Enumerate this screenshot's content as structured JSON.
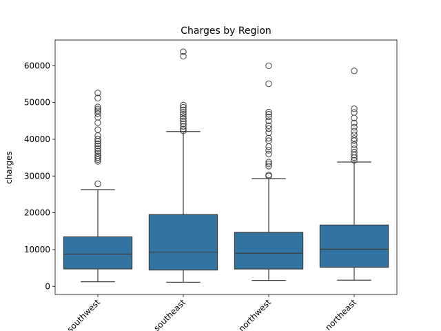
{
  "chart_data": {
    "type": "box",
    "title": "Charges by Region",
    "xlabel": "",
    "ylabel": "charges",
    "ylim": [
      -2200,
      67000
    ],
    "yticks": [
      0,
      10000,
      20000,
      30000,
      40000,
      50000,
      60000
    ],
    "ytick_labels": [
      "0",
      "10000",
      "20000",
      "30000",
      "40000",
      "50000",
      "60000"
    ],
    "grid": false,
    "box_color": "#3274a1",
    "edge_color": "#3d3d3d",
    "categories": [
      "southwest",
      "southeast",
      "northwest",
      "northeast"
    ],
    "boxes": [
      {
        "category": "southwest",
        "whisker_low": 1240,
        "q1": 4750,
        "median": 8800,
        "q3": 13460,
        "whisker_high": 26300,
        "outliers": [
          27900,
          34000,
          34500,
          35000,
          35500,
          36200,
          36800,
          37500,
          38200,
          38800,
          39500,
          40100,
          41000,
          42600,
          44500,
          46000,
          47000,
          47700,
          48200,
          48800,
          51200,
          52600
        ]
      },
      {
        "category": "southeast",
        "whisker_low": 1120,
        "q1": 4440,
        "median": 9300,
        "q3": 19530,
        "whisker_high": 42100,
        "outliers": [
          42300,
          42800,
          43500,
          44200,
          44900,
          45600,
          46200,
          46800,
          47300,
          48000,
          48700,
          49300,
          62600,
          63800
        ]
      },
      {
        "category": "northwest",
        "whisker_low": 1620,
        "q1": 4720,
        "median": 9000,
        "q3": 14700,
        "whisker_high": 29300,
        "outliers": [
          30000,
          30300,
          32700,
          33300,
          33800,
          36000,
          37000,
          38000,
          39600,
          40300,
          41800,
          42900,
          43700,
          45000,
          46100,
          46800,
          47400,
          55100,
          60000
        ]
      },
      {
        "category": "northeast",
        "whisker_low": 1690,
        "q1": 5200,
        "median": 10100,
        "q3": 16680,
        "whisker_high": 33800,
        "outliers": [
          34300,
          35000,
          35700,
          36500,
          37400,
          38500,
          39600,
          40200,
          41200,
          42200,
          43300,
          44400,
          45800,
          47300,
          48300,
          58600
        ]
      }
    ]
  }
}
